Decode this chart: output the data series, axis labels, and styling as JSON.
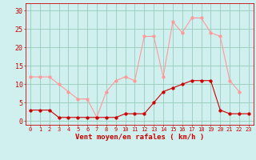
{
  "hours": [
    0,
    1,
    2,
    3,
    4,
    5,
    6,
    7,
    8,
    9,
    10,
    11,
    12,
    13,
    14,
    15,
    16,
    17,
    18,
    19,
    20,
    21,
    22,
    23
  ],
  "wind_avg": [
    3,
    3,
    3,
    1,
    1,
    1,
    1,
    1,
    1,
    1,
    2,
    2,
    2,
    5,
    8,
    9,
    10,
    11,
    11,
    11,
    3,
    2,
    2,
    2
  ],
  "wind_gust": [
    12,
    12,
    12,
    10,
    8,
    6,
    6,
    1,
    8,
    11,
    12,
    11,
    23,
    23,
    12,
    27,
    24,
    28,
    28,
    24,
    23,
    11,
    8,
    null
  ],
  "line_avg_color": "#cc0000",
  "line_gust_color": "#ff9999",
  "marker_size": 2.5,
  "bg_color": "#cff0ee",
  "grid_color": "#99ccbb",
  "xlabel": "Vent moyen/en rafales ( km/h )",
  "xlabel_color": "#cc0000",
  "yticks": [
    0,
    5,
    10,
    15,
    20,
    25,
    30
  ],
  "ylim": [
    -1,
    32
  ],
  "xlim": [
    -0.5,
    23.5
  ],
  "tick_color": "#cc0000",
  "tick_fontsize": 5,
  "xlabel_fontsize": 6.5
}
